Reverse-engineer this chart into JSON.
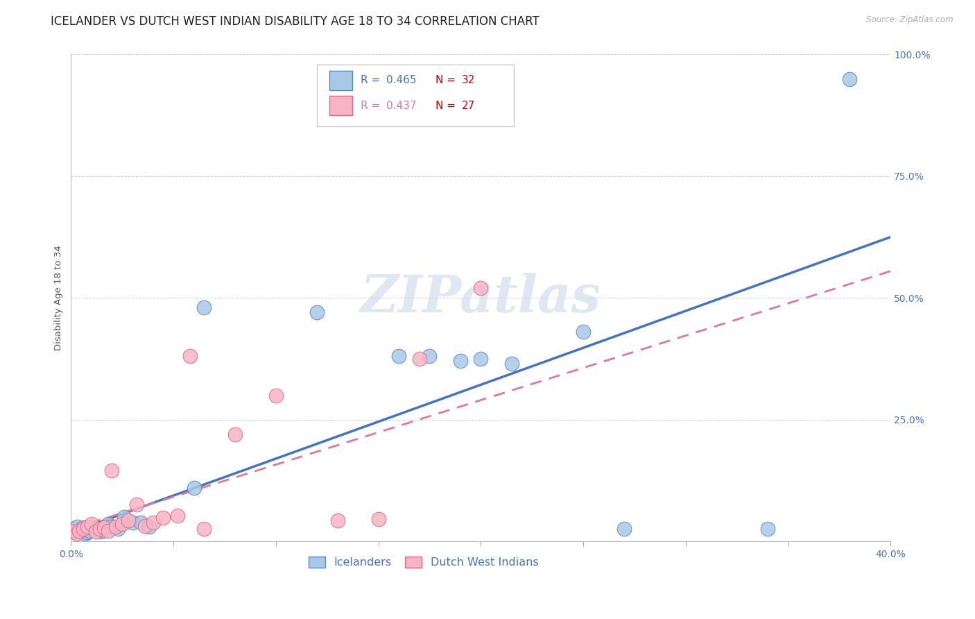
{
  "title": "ICELANDER VS DUTCH WEST INDIAN DISABILITY AGE 18 TO 34 CORRELATION CHART",
  "source": "Source: ZipAtlas.com",
  "ylabel": "Disability Age 18 to 34",
  "xlim": [
    0.0,
    0.4
  ],
  "ylim": [
    0.0,
    1.0
  ],
  "icelanders_R": 0.465,
  "icelanders_N": 32,
  "dutch_R": 0.437,
  "dutch_N": 27,
  "icelanders_fill": "#a8c8e8",
  "icelanders_edge": "#5588cc",
  "dutch_fill": "#f8b4c4",
  "dutch_edge": "#e06880",
  "icelanders_line": "#4472c4",
  "dutch_line": "#e07898",
  "watermark_color": "#c8d8ea",
  "background_color": "#ffffff",
  "grid_color": "#cccccc",
  "title_fontsize": 12,
  "tick_fontsize": 10,
  "axis_label_fontsize": 9.5,
  "tick_color": "#4472c4",
  "legend_N_color": "#cc0000",
  "icelanders_x": [
    0.001,
    0.002,
    0.003,
    0.004,
    0.005,
    0.006,
    0.007,
    0.008,
    0.009,
    0.01,
    0.012,
    0.014,
    0.016,
    0.018,
    0.02,
    0.023,
    0.026,
    0.03,
    0.034,
    0.038,
    0.06,
    0.065,
    0.12,
    0.16,
    0.175,
    0.19,
    0.2,
    0.215,
    0.25,
    0.27,
    0.34,
    0.38
  ],
  "icelanders_y": [
    0.02,
    0.025,
    0.03,
    0.018,
    0.022,
    0.028,
    0.015,
    0.018,
    0.022,
    0.03,
    0.025,
    0.02,
    0.022,
    0.035,
    0.03,
    0.025,
    0.05,
    0.038,
    0.038,
    0.03,
    0.11,
    0.48,
    0.47,
    0.38,
    0.38,
    0.37,
    0.375,
    0.365,
    0.43,
    0.025,
    0.025,
    0.95
  ],
  "dutch_x": [
    0.001,
    0.003,
    0.004,
    0.006,
    0.008,
    0.01,
    0.012,
    0.014,
    0.016,
    0.018,
    0.02,
    0.022,
    0.025,
    0.028,
    0.032,
    0.036,
    0.04,
    0.045,
    0.052,
    0.058,
    0.065,
    0.08,
    0.1,
    0.13,
    0.15,
    0.17,
    0.2
  ],
  "dutch_y": [
    0.02,
    0.015,
    0.022,
    0.025,
    0.03,
    0.035,
    0.02,
    0.025,
    0.028,
    0.022,
    0.145,
    0.03,
    0.035,
    0.042,
    0.075,
    0.032,
    0.038,
    0.048,
    0.052,
    0.38,
    0.025,
    0.22,
    0.3,
    0.042,
    0.045,
    0.375,
    0.52
  ],
  "blue_line_x0": 0.0,
  "blue_line_y0": 0.018,
  "blue_line_x1": 0.4,
  "blue_line_y1": 0.625,
  "pink_line_x0": 0.0,
  "pink_line_y0": 0.025,
  "pink_line_x1": 0.4,
  "pink_line_y1": 0.555
}
